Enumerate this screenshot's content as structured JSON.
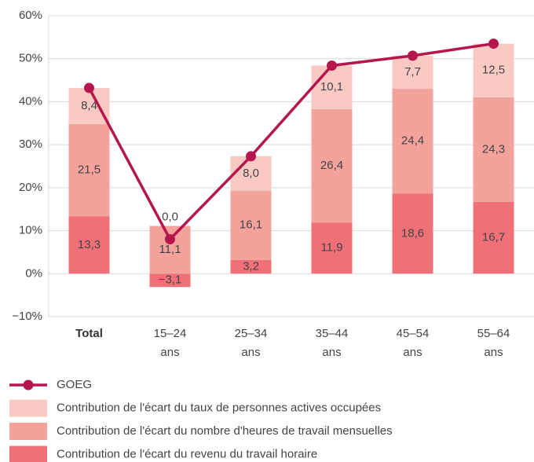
{
  "chart_data": {
    "type": "bar",
    "categories": [
      "Total",
      "15–24 ans",
      "25–34 ans",
      "35–44 ans",
      "45–54 ans",
      "55–64 ans"
    ],
    "series": [
      {
        "name": "Contribution de l'écart du revenu du travail horaire",
        "color": "#f07078",
        "values": [
          13.3,
          -3.1,
          3.2,
          11.9,
          18.6,
          16.7
        ],
        "value_labels": [
          "13,3",
          "−3,1",
          "3,2",
          "11,9",
          "18,6",
          "16,7"
        ]
      },
      {
        "name": "Contribution de l'écart du nombre d'heures de travail mensuelles",
        "color": "#f4a29c",
        "values": [
          21.5,
          11.1,
          16.1,
          26.4,
          24.4,
          24.3
        ],
        "value_labels": [
          "21,5",
          "11,1",
          "16,1",
          "26,4",
          "24,4",
          "24,3"
        ]
      },
      {
        "name": "Contribution de l'écart du taux de personnes actives occupées",
        "color": "#f9cac4",
        "values": [
          8.4,
          0.0,
          8.0,
          10.1,
          7.7,
          12.5
        ],
        "value_labels": [
          "8,4",
          "0,0",
          "8,0",
          "10,1",
          "7,7",
          "12,5"
        ]
      },
      {
        "name": "GOEG",
        "type": "line",
        "color": "#b5174b",
        "values": [
          43.2,
          8.0,
          27.3,
          48.4,
          50.7,
          53.5
        ]
      }
    ],
    "ylim": [
      -10,
      60
    ],
    "yticks": [
      {
        "value": -10,
        "label": "−10%"
      },
      {
        "value": 0,
        "label": "0%"
      },
      {
        "value": 10,
        "label": "10%"
      },
      {
        "value": 20,
        "label": "20%"
      },
      {
        "value": 30,
        "label": "30%"
      },
      {
        "value": 40,
        "label": "40%"
      },
      {
        "value": 50,
        "label": "50%"
      },
      {
        "value": 60,
        "label": "60%"
      }
    ],
    "grid": true
  }
}
